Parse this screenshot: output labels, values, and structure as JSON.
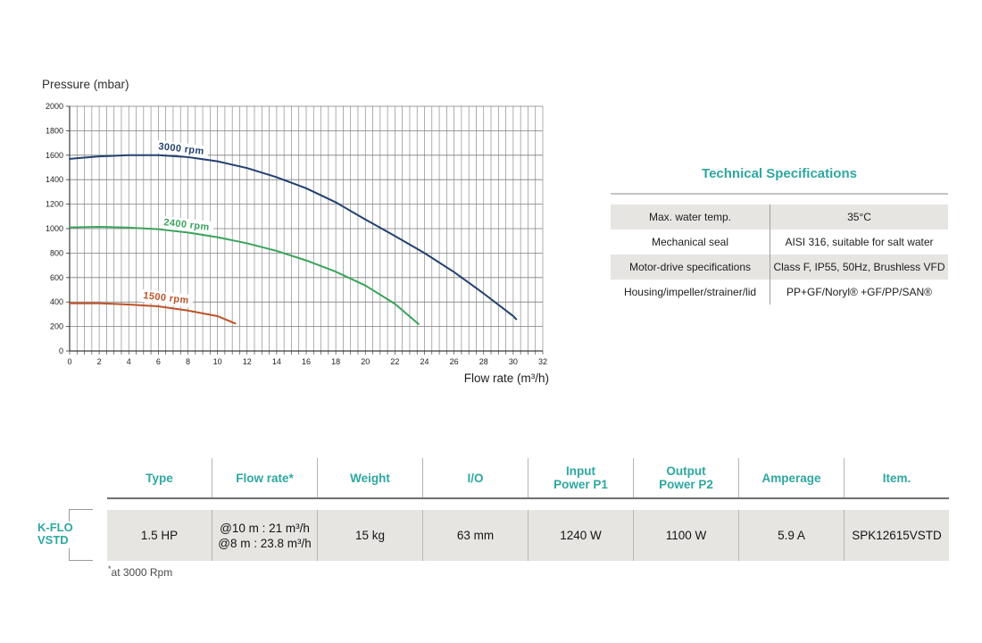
{
  "colors": {
    "teal_accent": "#2ea7a0",
    "cell_gray": "#e7e5e2",
    "grid_gray": "#8d8d8d",
    "series_3000": "#23406f",
    "series_2400": "#3aa35c",
    "series_1500": "#bd5228"
  },
  "chart_data": {
    "type": "line",
    "title": "Pressure (mbar)",
    "xlabel": "Flow rate (m³/h)",
    "ylabel": "Pressure (mbar)",
    "xlim": [
      0,
      32
    ],
    "ylim": [
      0,
      2000
    ],
    "x_tick_step": 2,
    "x_minor_step": 0.5,
    "y_tick_step": 200,
    "grid": true,
    "legend_position": "inline-labels",
    "series": [
      {
        "name": "3000 rpm",
        "color": "#23406f",
        "label_pos": [
          7.55,
          1650
        ],
        "points": [
          [
            0,
            1570
          ],
          [
            2,
            1590
          ],
          [
            4,
            1600
          ],
          [
            6,
            1600
          ],
          [
            8,
            1585
          ],
          [
            10,
            1550
          ],
          [
            12,
            1495
          ],
          [
            14,
            1420
          ],
          [
            16,
            1330
          ],
          [
            18,
            1215
          ],
          [
            20,
            1075
          ],
          [
            22,
            940
          ],
          [
            24,
            800
          ],
          [
            26,
            645
          ],
          [
            28,
            470
          ],
          [
            30,
            285
          ],
          [
            30.2,
            260
          ]
        ]
      },
      {
        "name": "2400 rpm",
        "color": "#3aa35c",
        "label_pos": [
          7.9,
          1030
        ],
        "points": [
          [
            0,
            1010
          ],
          [
            2,
            1015
          ],
          [
            4,
            1008
          ],
          [
            6,
            995
          ],
          [
            8,
            968
          ],
          [
            10,
            930
          ],
          [
            12,
            880
          ],
          [
            14,
            818
          ],
          [
            16,
            740
          ],
          [
            18,
            648
          ],
          [
            20,
            535
          ],
          [
            22,
            385
          ],
          [
            23.6,
            220
          ]
        ]
      },
      {
        "name": "1500 rpm",
        "color": "#bd5228",
        "label_pos": [
          6.5,
          430
        ],
        "points": [
          [
            0,
            390
          ],
          [
            2,
            390
          ],
          [
            4,
            380
          ],
          [
            6,
            365
          ],
          [
            8,
            330
          ],
          [
            10,
            285
          ],
          [
            11.2,
            225
          ]
        ]
      }
    ]
  },
  "spec_table": {
    "title": "Technical Specifications",
    "rows": [
      {
        "label": "Max. water temp.",
        "value": "35°C"
      },
      {
        "label": "Mechanical seal",
        "value": "AISI 316, suitable for salt water"
      },
      {
        "label": "Motor-drive specifications",
        "value": "Class F, IP55, 50Hz, Brushless VFD"
      },
      {
        "label": "Housing/impeller/strainer/lid",
        "value": "PP+GF/Noryl® +GF/PP/SAN®"
      }
    ]
  },
  "bottom_table": {
    "row_label": "K-FLO\nVSTD",
    "headers": [
      "Type",
      "Flow rate*",
      "Weight",
      "I/O",
      "Input\nPower P1",
      "Output\nPower P2",
      "Amperage",
      "Item."
    ],
    "cells": [
      "1.5 HP",
      "@10 m : 21 m³/h\n@8 m : 23.8 m³/h",
      "15 kg",
      "63 mm",
      "1240 W",
      "1100 W",
      "5.9 A",
      "SPK12615VSTD"
    ],
    "footnote_star": "*",
    "footnote_text": "at 3000 Rpm"
  }
}
